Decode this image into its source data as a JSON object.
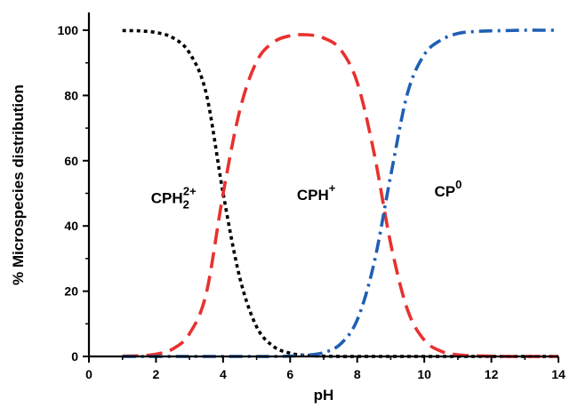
{
  "chart_data": {
    "type": "line",
    "xlabel": "pH",
    "ylabel": "% Microspecies distribution",
    "xlim": [
      0,
      14
    ],
    "ylim": [
      0,
      100
    ],
    "xticks": [
      "0",
      "2",
      "4",
      "6",
      "8",
      "10",
      "12",
      "14"
    ],
    "yticks": [
      "0",
      "20",
      "40",
      "60",
      "80",
      "100"
    ],
    "grid": false,
    "legend": "none",
    "annotations": [
      {
        "base": "CPH",
        "sub": "2",
        "sup": "2+",
        "x": 1.85,
        "y": 47
      },
      {
        "base": "CPH",
        "sup": "+",
        "x": 6.2,
        "y": 48
      },
      {
        "base": "CP",
        "sup": "0",
        "x": 10.3,
        "y": 49
      }
    ],
    "x": [
      1,
      1.5,
      2,
      2.5,
      3,
      3.5,
      4,
      4.5,
      5,
      5.5,
      6,
      6.5,
      7,
      7.5,
      8,
      8.5,
      9,
      9.5,
      10,
      10.5,
      11,
      11.5,
      12,
      12.5,
      13,
      13.5,
      14
    ],
    "series": [
      {
        "color": "#000000",
        "dash": "dotted",
        "values": [
          99.9,
          99.8,
          99.3,
          97.7,
          93,
          80.5,
          50.1,
          24.1,
          9.1,
          3.1,
          1.0,
          0.3,
          0.1,
          0,
          0,
          0,
          0,
          0,
          0,
          0,
          0,
          0,
          0,
          0,
          0,
          0,
          0
        ]
      },
      {
        "color": "#e8312f",
        "dash": "dashed",
        "values": [
          0.1,
          0.2,
          0.7,
          2.3,
          7.0,
          19.4,
          49.8,
          75.5,
          90.4,
          96.3,
          98.3,
          98.6,
          97.6,
          94.1,
          84.0,
          62.5,
          34.5,
          14.3,
          5.0,
          1.6,
          0.5,
          0.2,
          0.1,
          0,
          0,
          0,
          0
        ]
      },
      {
        "color": "#1f5fb4",
        "dash": "dash-dot",
        "values": [
          0,
          0,
          0,
          0,
          0,
          0,
          0,
          0,
          0,
          0,
          0.1,
          0.4,
          1.2,
          3.8,
          11.2,
          28.5,
          55.5,
          80.7,
          92.5,
          97.0,
          99.0,
          99.6,
          99.8,
          99.9,
          100,
          100,
          100
        ]
      }
    ]
  }
}
